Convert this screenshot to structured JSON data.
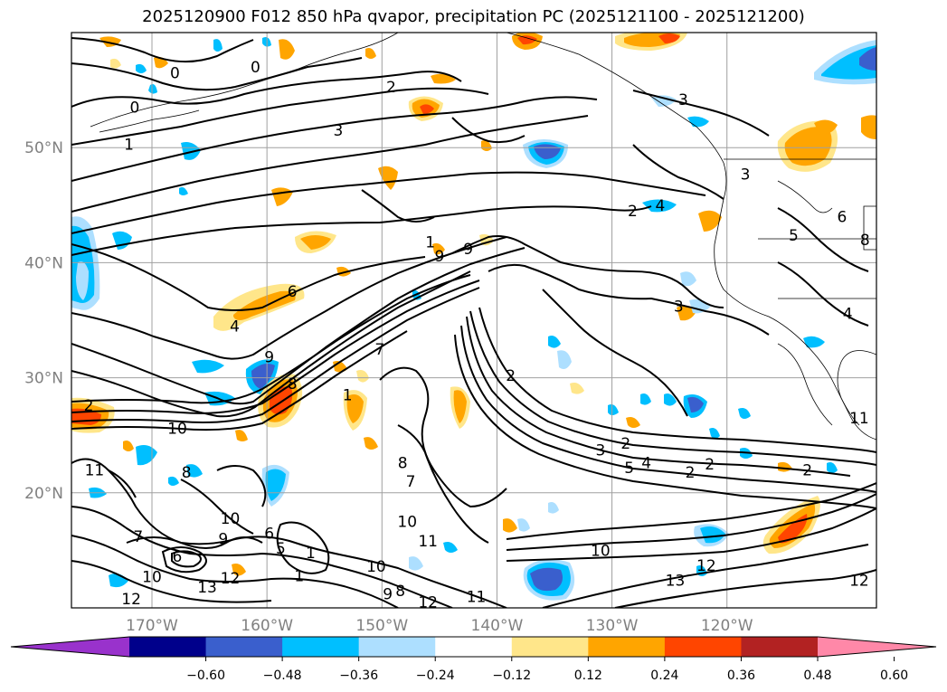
{
  "title": "2025120900 F012 850 hPa qvapor, precipitation PC (2025121100 - 2025121200)",
  "map": {
    "lon_range": [
      -177,
      -107
    ],
    "lat_range": [
      10,
      60
    ],
    "lon_ticks": [
      {
        "value": -170,
        "label": "170°W"
      },
      {
        "value": -160,
        "label": "160°W"
      },
      {
        "value": -150,
        "label": "150°W"
      },
      {
        "value": -140,
        "label": "140°W"
      },
      {
        "value": -130,
        "label": "130°W"
      },
      {
        "value": -120,
        "label": "120°W"
      }
    ],
    "lat_ticks": [
      {
        "value": 20,
        "label": "20°N"
      },
      {
        "value": 30,
        "label": "30°N"
      },
      {
        "value": 40,
        "label": "40°N"
      },
      {
        "value": 50,
        "label": "50°N"
      }
    ],
    "grid": true
  },
  "colorbar": {
    "ticks": [
      "−0.60",
      "−0.48",
      "−0.36",
      "−0.24",
      "−0.12",
      "0.12",
      "0.24",
      "0.36",
      "0.48",
      "0.60"
    ],
    "colors": [
      "#9932CC",
      "#00008B",
      "#3A5FCD",
      "#00BFFF",
      "#ADDFFF",
      "#FFFFFF",
      "#FFE68A",
      "#FFA500",
      "#FF4500",
      "#B22222",
      "#FF88A8"
    ]
  },
  "contour_labels": [
    {
      "text": "0",
      "lon": -161.0,
      "lat": 57.0
    },
    {
      "text": "0",
      "lon": -168.0,
      "lat": 56.5
    },
    {
      "text": "0",
      "lon": -171.5,
      "lat": 53.5
    },
    {
      "text": "1",
      "lon": -172.0,
      "lat": 50.3
    },
    {
      "text": "2",
      "lon": -149.2,
      "lat": 55.3
    },
    {
      "text": "3",
      "lon": -153.8,
      "lat": 51.5
    },
    {
      "text": "3",
      "lon": -123.8,
      "lat": 54.2
    },
    {
      "text": "3",
      "lon": -118.4,
      "lat": 47.7
    },
    {
      "text": "4",
      "lon": -125.8,
      "lat": 45.0
    },
    {
      "text": "2",
      "lon": -128.2,
      "lat": 44.5
    },
    {
      "text": "6",
      "lon": -157.8,
      "lat": 37.5
    },
    {
      "text": "4",
      "lon": -162.8,
      "lat": 34.5
    },
    {
      "text": "9",
      "lon": -145.0,
      "lat": 40.6
    },
    {
      "text": "9",
      "lon": -142.5,
      "lat": 41.2
    },
    {
      "text": "3",
      "lon": -124.2,
      "lat": 36.2
    },
    {
      "text": "9",
      "lon": -159.8,
      "lat": 31.8
    },
    {
      "text": "8",
      "lon": -157.8,
      "lat": 29.5
    },
    {
      "text": "7",
      "lon": -150.2,
      "lat": 32.5
    },
    {
      "text": "2",
      "lon": -138.8,
      "lat": 30.2
    },
    {
      "text": "10",
      "lon": -167.8,
      "lat": 25.6
    },
    {
      "text": "11",
      "lon": -175.0,
      "lat": 22.0
    },
    {
      "text": "8",
      "lon": -167.0,
      "lat": 21.8
    },
    {
      "text": "8",
      "lon": -148.2,
      "lat": 22.6
    },
    {
      "text": "3",
      "lon": -131.0,
      "lat": 23.7
    },
    {
      "text": "2",
      "lon": -128.8,
      "lat": 24.3
    },
    {
      "text": "5",
      "lon": -128.5,
      "lat": 22.2
    },
    {
      "text": "4",
      "lon": -127.0,
      "lat": 22.6
    },
    {
      "text": "2",
      "lon": -123.2,
      "lat": 21.8
    },
    {
      "text": "2",
      "lon": -121.5,
      "lat": 22.5
    },
    {
      "text": "10",
      "lon": -147.8,
      "lat": 17.5
    },
    {
      "text": "11",
      "lon": -146.0,
      "lat": 15.8
    },
    {
      "text": "10",
      "lon": -163.2,
      "lat": 17.8
    },
    {
      "text": "9",
      "lon": -163.8,
      "lat": 16.0
    },
    {
      "text": "10",
      "lon": -131.0,
      "lat": 15.0
    },
    {
      "text": "12",
      "lon": -121.8,
      "lat": 13.7
    },
    {
      "text": "13",
      "lon": -124.5,
      "lat": 12.4
    },
    {
      "text": "12",
      "lon": -108.5,
      "lat": 12.4
    },
    {
      "text": "12",
      "lon": -171.8,
      "lat": 10.8
    },
    {
      "text": "12",
      "lon": -163.2,
      "lat": 12.6
    },
    {
      "text": "13",
      "lon": -165.2,
      "lat": 11.8
    },
    {
      "text": "10",
      "lon": -170.0,
      "lat": 12.7
    },
    {
      "text": "5",
      "lon": -158.8,
      "lat": 15.2
    },
    {
      "text": "6",
      "lon": -159.8,
      "lat": 16.5
    },
    {
      "text": "6",
      "lon": -167.8,
      "lat": 14.5
    },
    {
      "text": "7",
      "lon": -171.2,
      "lat": 16.2
    },
    {
      "text": "1",
      "lon": -156.2,
      "lat": 14.8
    },
    {
      "text": "1",
      "lon": -157.2,
      "lat": 12.8
    },
    {
      "text": "10",
      "lon": -150.5,
      "lat": 13.6
    },
    {
      "text": "12",
      "lon": -146.0,
      "lat": 10.5
    },
    {
      "text": "11",
      "lon": -141.8,
      "lat": 11.0
    },
    {
      "text": "8",
      "lon": -148.4,
      "lat": 11.5
    },
    {
      "text": "9",
      "lon": -149.5,
      "lat": 11.2
    },
    {
      "text": "8",
      "lon": -108.0,
      "lat": 42.0
    },
    {
      "text": "6",
      "lon": -110.0,
      "lat": 44.0
    },
    {
      "text": "5",
      "lon": -114.2,
      "lat": 42.4
    },
    {
      "text": "4",
      "lon": -109.5,
      "lat": 35.6
    },
    {
      "text": "2",
      "lon": -113.0,
      "lat": 22.0
    },
    {
      "text": "11",
      "lon": -108.5,
      "lat": 26.5
    },
    {
      "text": "2",
      "lon": -175.5,
      "lat": 27.6
    },
    {
      "text": "1",
      "lon": -153.0,
      "lat": 28.5
    },
    {
      "text": "7",
      "lon": -147.5,
      "lat": 21.0
    },
    {
      "text": "1",
      "lon": -145.8,
      "lat": 41.8
    }
  ]
}
